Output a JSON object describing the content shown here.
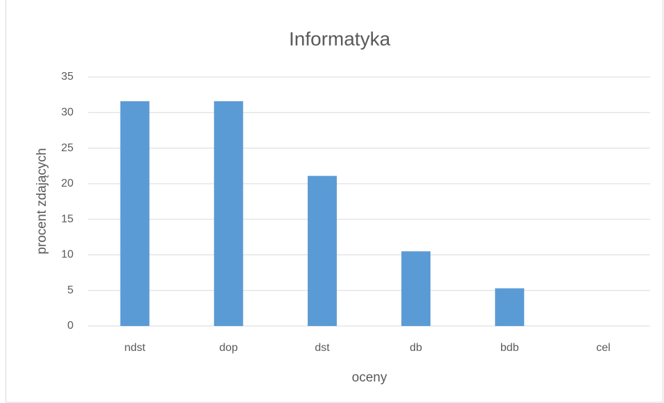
{
  "chart_data": {
    "type": "bar",
    "title": "Informatyka",
    "x_label": "oceny",
    "y_label": "procent zdających",
    "categories": [
      "ndst",
      "dop",
      "dst",
      "db",
      "bdb",
      "cel"
    ],
    "values": [
      31.6,
      31.6,
      21.1,
      10.5,
      5.3,
      0
    ],
    "color": "#5b9bd5",
    "ylim": [
      0,
      35
    ],
    "yticks": [
      0,
      5,
      10,
      15,
      20,
      25,
      30,
      35
    ],
    "grid": true
  }
}
